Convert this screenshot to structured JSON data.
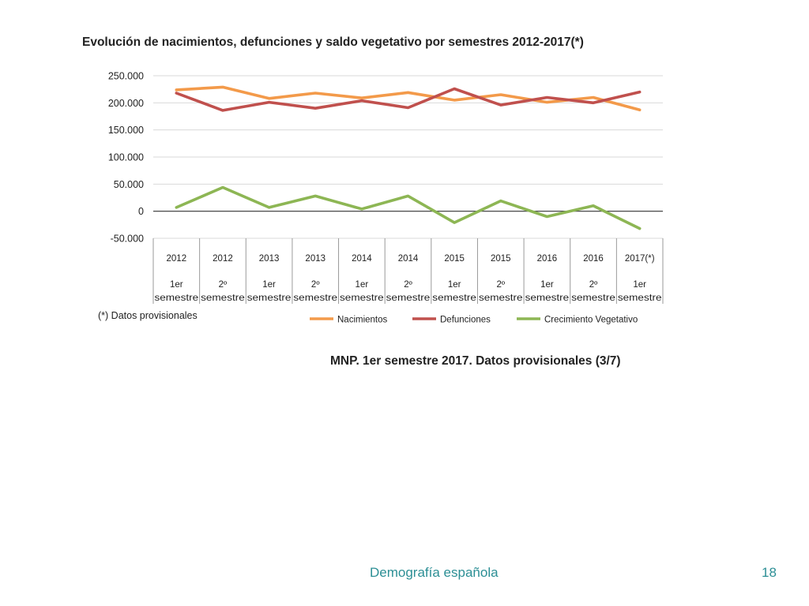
{
  "colors": {
    "nacimientos": "#F39A4A",
    "defunciones": "#C0504D",
    "crecimiento": "#8DB654",
    "footer_text": "#2C8F95",
    "grid": "#D9D9D9",
    "axis": "#333333",
    "text": "#222222"
  },
  "chart_data": {
    "type": "line",
    "title": "Evolución de nacimientos, defunciones y saldo vegetativo por semestres 2012-2017(*)",
    "xlabel": "",
    "ylabel": "",
    "ylim": [
      -50000,
      250000
    ],
    "yticks": [
      250000,
      200000,
      150000,
      100000,
      50000,
      0,
      -50000
    ],
    "ytick_labels": [
      "250.000",
      "200.000",
      "150.000",
      "100.000",
      "50.000",
      "0",
      "-50.000"
    ],
    "grid": true,
    "legend_position": "bottom-right",
    "categories": [
      {
        "year": "2012",
        "semester_line1": "1er",
        "semester_line2": "semestre"
      },
      {
        "year": "2012",
        "semester_line1": "2º",
        "semester_line2": "semestre"
      },
      {
        "year": "2013",
        "semester_line1": "1er",
        "semester_line2": "semestre"
      },
      {
        "year": "2013",
        "semester_line1": "2º",
        "semester_line2": "semestre"
      },
      {
        "year": "2014",
        "semester_line1": "1er",
        "semester_line2": "semestre"
      },
      {
        "year": "2014",
        "semester_line1": "2º",
        "semester_line2": "semestre"
      },
      {
        "year": "2015",
        "semester_line1": "1er",
        "semester_line2": "semestre"
      },
      {
        "year": "2015",
        "semester_line1": "2º",
        "semester_line2": "semestre"
      },
      {
        "year": "2016",
        "semester_line1": "1er",
        "semester_line2": "semestre"
      },
      {
        "year": "2016",
        "semester_line1": "2º",
        "semester_line2": "semestre"
      },
      {
        "year": "2017(*)",
        "semester_line1": "1er",
        "semester_line2": "semestre"
      }
    ],
    "series": [
      {
        "name": "Nacimientos",
        "color_key": "nacimientos",
        "values": [
          224000,
          229000,
          208000,
          218000,
          209000,
          219000,
          205000,
          215000,
          201000,
          210000,
          187000
        ]
      },
      {
        "name": "Defunciones",
        "color_key": "defunciones",
        "values": [
          218000,
          186000,
          201000,
          190000,
          204000,
          191000,
          226000,
          196000,
          210000,
          200000,
          220000
        ]
      },
      {
        "name": "Crecimiento Vegetativo",
        "color_key": "crecimiento",
        "values": [
          7000,
          44000,
          7000,
          28000,
          4000,
          28000,
          -21000,
          19000,
          -10000,
          10000,
          -32000
        ]
      }
    ]
  },
  "footnote": "(*) Datos provisionales",
  "source_line": "MNP. 1er semestre 2017. Datos provisionales (3/7)",
  "footer": {
    "title": "Demografía española",
    "page_number": "18"
  }
}
